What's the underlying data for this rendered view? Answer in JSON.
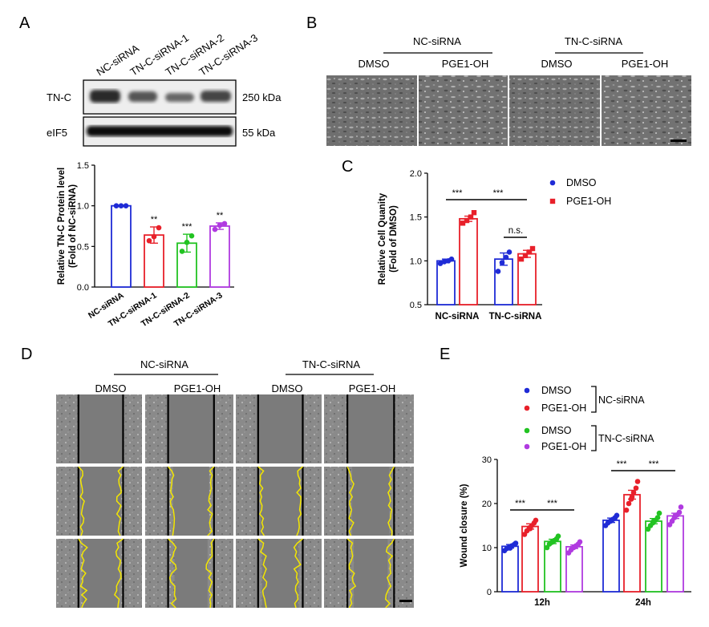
{
  "panels": {
    "A": {
      "letter": "A",
      "lanes": [
        "NC-siRNA",
        "TN-C-siRNA-1",
        "TN-C-siRNA-2",
        "TN-C-siRNA-3"
      ],
      "blot_labels": [
        "TN-C",
        "eIF5"
      ],
      "kda_labels": [
        "250 kDa",
        "55 kDa"
      ]
    },
    "B": {
      "letter": "B",
      "groups": [
        "NC-siRNA",
        "TN-C-siRNA"
      ],
      "treatments": [
        "DMSO",
        "PGE1-OH",
        "DMSO",
        "PGE1-OH"
      ]
    },
    "D": {
      "letter": "D",
      "groups": [
        "NC-siRNA",
        "TN-C-siRNA"
      ],
      "treatments": [
        "DMSO",
        "PGE1-OH",
        "DMSO",
        "PGE1-OH"
      ]
    }
  },
  "colors": {
    "dmso": "#1f2bd6",
    "pge": "#e8202a",
    "green": "#22c322",
    "purple": "#b03ae0",
    "wound_line": "#f3e600"
  },
  "chart_data": [
    {
      "panel": "A",
      "type": "bar",
      "ylabel": "Relative TN-C Protein level\n(Fold of NC-siRNA)",
      "ylim": [
        0,
        1.5
      ],
      "yticks": [
        "0.0",
        "0.5",
        "1.0",
        "1.5"
      ],
      "categories": [
        "NC-siRNA",
        "TN-C-siRNA-1",
        "TN-C-siRNA-2",
        "TN-C-siRNA-3"
      ],
      "values": [
        1.0,
        0.64,
        0.54,
        0.75
      ],
      "errors": [
        0.0,
        0.1,
        0.11,
        0.04
      ],
      "points": [
        [
          1.0,
          1.0,
          1.0
        ],
        [
          0.57,
          0.62,
          0.73
        ],
        [
          0.44,
          0.55,
          0.63
        ],
        [
          0.71,
          0.76,
          0.78
        ]
      ],
      "significance": [
        "",
        "**",
        "***",
        "**"
      ]
    },
    {
      "panel": "C",
      "type": "bar",
      "ylabel": "Relative Cell Quanity\n(Fold of DMSO)",
      "ylim": [
        0.5,
        2.0
      ],
      "yticks": [
        "0.5",
        "1.0",
        "1.5",
        "2.0"
      ],
      "categories": [
        "NC-siRNA",
        "TN-C-siRNA"
      ],
      "series": [
        {
          "name": "DMSO",
          "values": [
            1.0,
            1.02
          ],
          "errors": [
            0.02,
            0.07
          ],
          "points": [
            [
              0.97,
              0.99,
              1.0,
              1.02
            ],
            [
              0.88,
              0.98,
              1.04,
              1.1
            ]
          ]
        },
        {
          "name": "PGE1-OH",
          "values": [
            1.48,
            1.08
          ],
          "errors": [
            0.03,
            0.04
          ],
          "points": [
            [
              1.43,
              1.46,
              1.5,
              1.55
            ],
            [
              1.02,
              1.06,
              1.1,
              1.14
            ]
          ]
        }
      ],
      "legend": [
        "DMSO",
        "PGE1-OH"
      ],
      "significance": [
        "***",
        "***",
        "n.s."
      ]
    },
    {
      "panel": "E",
      "type": "bar",
      "ylabel": "Wound closure (%)",
      "ylim": [
        0,
        30
      ],
      "yticks": [
        "0",
        "10",
        "20",
        "30"
      ],
      "categories": [
        "12h",
        "24h"
      ],
      "series": [
        {
          "name": "DMSO",
          "values": [
            10.3,
            16.2
          ],
          "errors": [
            0.4,
            0.5
          ],
          "points": [
            [
              9.3,
              9.8,
              10.2,
              10.4,
              10.7,
              11.0,
              9.9
            ],
            [
              15.0,
              15.6,
              16.0,
              16.4,
              16.8,
              17.3,
              16.1
            ]
          ]
        },
        {
          "name": "PGE1-OH",
          "values": [
            14.8,
            22.0
          ],
          "errors": [
            0.6,
            1.0
          ],
          "points": [
            [
              13.0,
              13.8,
              14.5,
              15.0,
              15.6,
              16.2,
              14.3
            ],
            [
              18.5,
              20.0,
              21.0,
              22.5,
              23.5,
              25.0,
              21.5
            ]
          ]
        },
        {
          "name": "DMSO",
          "values": [
            11.4,
            16.0
          ],
          "errors": [
            0.5,
            0.6
          ],
          "points": [
            [
              10.0,
              10.8,
              11.2,
              11.6,
              12.0,
              12.6,
              11.4
            ],
            [
              14.2,
              15.0,
              15.6,
              16.2,
              16.8,
              17.8,
              16.0
            ]
          ]
        },
        {
          "name": "PGE1-OH",
          "values": [
            10.2,
            17.2
          ],
          "errors": [
            0.4,
            0.6
          ],
          "points": [
            [
              8.8,
              9.5,
              10.0,
              10.4,
              10.8,
              11.3,
              10.1
            ],
            [
              15.2,
              16.0,
              16.8,
              17.4,
              18.0,
              19.2,
              17.3
            ]
          ]
        }
      ],
      "legend": [
        "DMSO",
        "PGE1-OH",
        "DMSO",
        "PGE1-OH"
      ],
      "legend_groups": [
        "NC-siRNA",
        "TN-C-siRNA"
      ],
      "significance": [
        "***",
        "***",
        "***",
        "***"
      ]
    }
  ]
}
